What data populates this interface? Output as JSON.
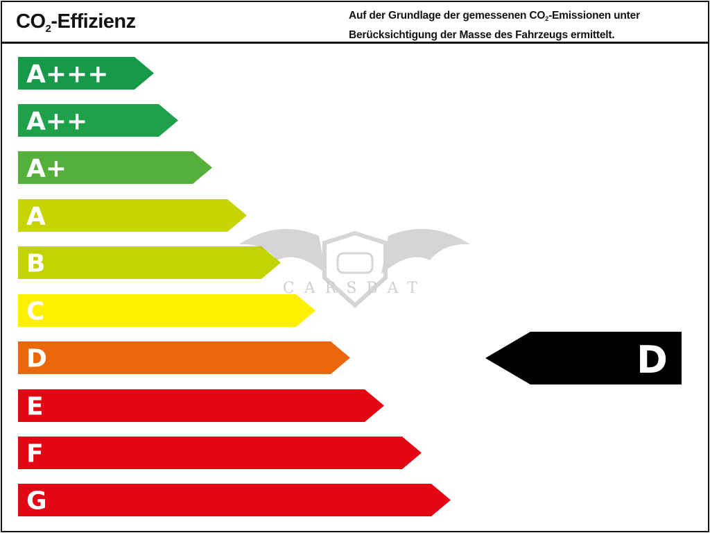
{
  "header": {
    "title_prefix": "CO",
    "title_sub": "2",
    "title_suffix": "-Effizienz",
    "note_line1_prefix": "Auf der Grundlage der gemessenen CO",
    "note_line1_sub": "2",
    "note_line1_suffix": "-Emissionen unter",
    "note_line2": "Berücksichtigung der Masse des Fahrzeugs ermittelt."
  },
  "classes": [
    {
      "label": "A+++",
      "color": "#17994a"
    },
    {
      "label": "A++",
      "color": "#1fa04b"
    },
    {
      "label": "A+",
      "color": "#54b03a"
    },
    {
      "label": "A",
      "color": "#c6d500"
    },
    {
      "label": "B",
      "color": "#c2d300"
    },
    {
      "label": "C",
      "color": "#fff000"
    },
    {
      "label": "D",
      "color": "#ea670c"
    },
    {
      "label": "E",
      "color": "#e30613"
    },
    {
      "label": "F",
      "color": "#e30613"
    },
    {
      "label": "G",
      "color": "#e30613"
    }
  ],
  "rating": {
    "label": "D",
    "color": "#000000"
  },
  "watermark": {
    "text": "CARSBAT"
  }
}
